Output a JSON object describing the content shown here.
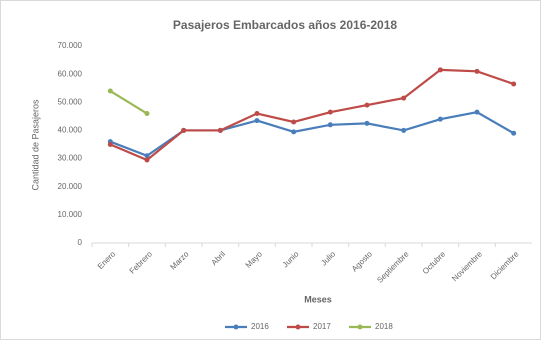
{
  "chart_data": {
    "type": "line",
    "title": "Pasajeros Embarcados años 2016-2018",
    "x_label": "Meses",
    "y_label": "Cantidad de Pasajeros",
    "categories": [
      "Enero",
      "Febrero",
      "Marzo",
      "Abril",
      "Mayo",
      "Junio",
      "Julio",
      "Agosto",
      "Septiembre",
      "Octubre",
      "Noviembre",
      "Diciembre"
    ],
    "series": [
      {
        "name": "2016",
        "color": "#4a7ebb",
        "values": [
          36000,
          31000,
          40000,
          40000,
          43500,
          39500,
          42000,
          42500,
          40000,
          44000,
          46500,
          39000
        ]
      },
      {
        "name": "2017",
        "color": "#be4b48",
        "values": [
          35000,
          29500,
          40000,
          40000,
          46000,
          43000,
          46500,
          49000,
          51500,
          61500,
          61000,
          56500
        ]
      },
      {
        "name": "2018",
        "color": "#98b954",
        "values": [
          54000,
          46000,
          null,
          null,
          null,
          null,
          null,
          null,
          null,
          null,
          null,
          null
        ]
      }
    ],
    "ylim": [
      0,
      70000
    ],
    "yticks": [
      0,
      {
        "value": 10000,
        "label": "10.000"
      },
      {
        "value": 20000,
        "label": "20.000"
      },
      {
        "value": 30000,
        "label": "30.000"
      },
      {
        "value": 40000,
        "label": "40.000"
      },
      {
        "value": 50000,
        "label": "50.000"
      },
      {
        "value": 60000,
        "label": "60.000"
      },
      {
        "value": 70000,
        "label": "70.000"
      }
    ],
    "grid": false,
    "legend": "bottom"
  }
}
